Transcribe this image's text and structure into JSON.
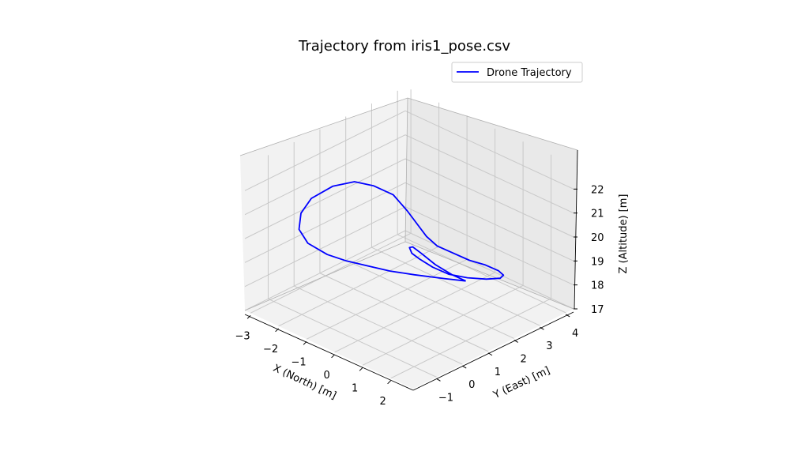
{
  "chart_data": {
    "type": "line",
    "projection": "3d",
    "title": "Trajectory from iris1_pose.csv",
    "xlabel": "X (North) [m]",
    "ylabel": "Y (East) [m]",
    "zlabel": "Z (Altitude) [m]",
    "xlim": [
      -3.2,
      2.8
    ],
    "ylim": [
      -1.9,
      4.3
    ],
    "zlim": [
      17,
      23
    ],
    "xticks": [
      "−3",
      "−2",
      "−1",
      "0",
      "1",
      "2"
    ],
    "yticks": [
      "−1",
      "0",
      "1",
      "2",
      "3",
      "4"
    ],
    "zticks": [
      "17",
      "18",
      "19",
      "20",
      "21",
      "22"
    ],
    "grid": true,
    "legend": {
      "location": "upper-right",
      "entries": [
        "Drone Trajectory"
      ]
    },
    "series": [
      {
        "name": "Drone Trajectory",
        "color": "#0000ff",
        "description": "figure-eight loop in 3D",
        "points": [
          [
            2.0,
            1.0,
            19.5
          ],
          [
            1.6,
            0.6,
            19.6
          ],
          [
            1.0,
            0.1,
            19.7
          ],
          [
            0.5,
            -0.3,
            19.8
          ],
          [
            0.0,
            -0.6,
            19.9
          ],
          [
            -0.5,
            -0.9,
            20.0
          ],
          [
            -1.0,
            -1.1,
            20.1
          ],
          [
            -1.6,
            -1.2,
            20.3
          ],
          [
            -2.1,
            -1.0,
            20.5
          ],
          [
            -2.4,
            -0.6,
            20.8
          ],
          [
            -2.4,
            -0.2,
            21.2
          ],
          [
            -2.1,
            0.3,
            21.6
          ],
          [
            -1.6,
            0.6,
            21.9
          ],
          [
            -1.0,
            0.7,
            22.0
          ],
          [
            -0.4,
            0.8,
            21.9
          ],
          [
            0.1,
            0.8,
            21.5
          ],
          [
            0.4,
            0.9,
            21.0
          ],
          [
            0.6,
            1.0,
            20.6
          ],
          [
            0.8,
            1.2,
            20.2
          ],
          [
            1.0,
            1.5,
            19.9
          ],
          [
            1.3,
            1.9,
            19.5
          ],
          [
            1.5,
            2.3,
            19.2
          ],
          [
            1.6,
            2.7,
            18.8
          ],
          [
            1.5,
            3.0,
            18.4
          ],
          [
            1.2,
            3.2,
            18.0
          ],
          [
            0.8,
            3.1,
            17.8
          ],
          [
            0.4,
            2.8,
            17.8
          ],
          [
            0.1,
            2.4,
            18.0
          ],
          [
            -0.1,
            2.0,
            18.4
          ],
          [
            -0.2,
            1.6,
            18.9
          ],
          [
            -0.2,
            1.3,
            19.3
          ],
          [
            -0.1,
            1.1,
            19.7
          ],
          [
            0.2,
            0.9,
            20.0
          ],
          [
            0.6,
            0.8,
            20.0
          ],
          [
            1.1,
            0.8,
            19.8
          ],
          [
            1.6,
            0.9,
            19.6
          ],
          [
            2.0,
            1.0,
            19.5
          ]
        ]
      }
    ]
  }
}
